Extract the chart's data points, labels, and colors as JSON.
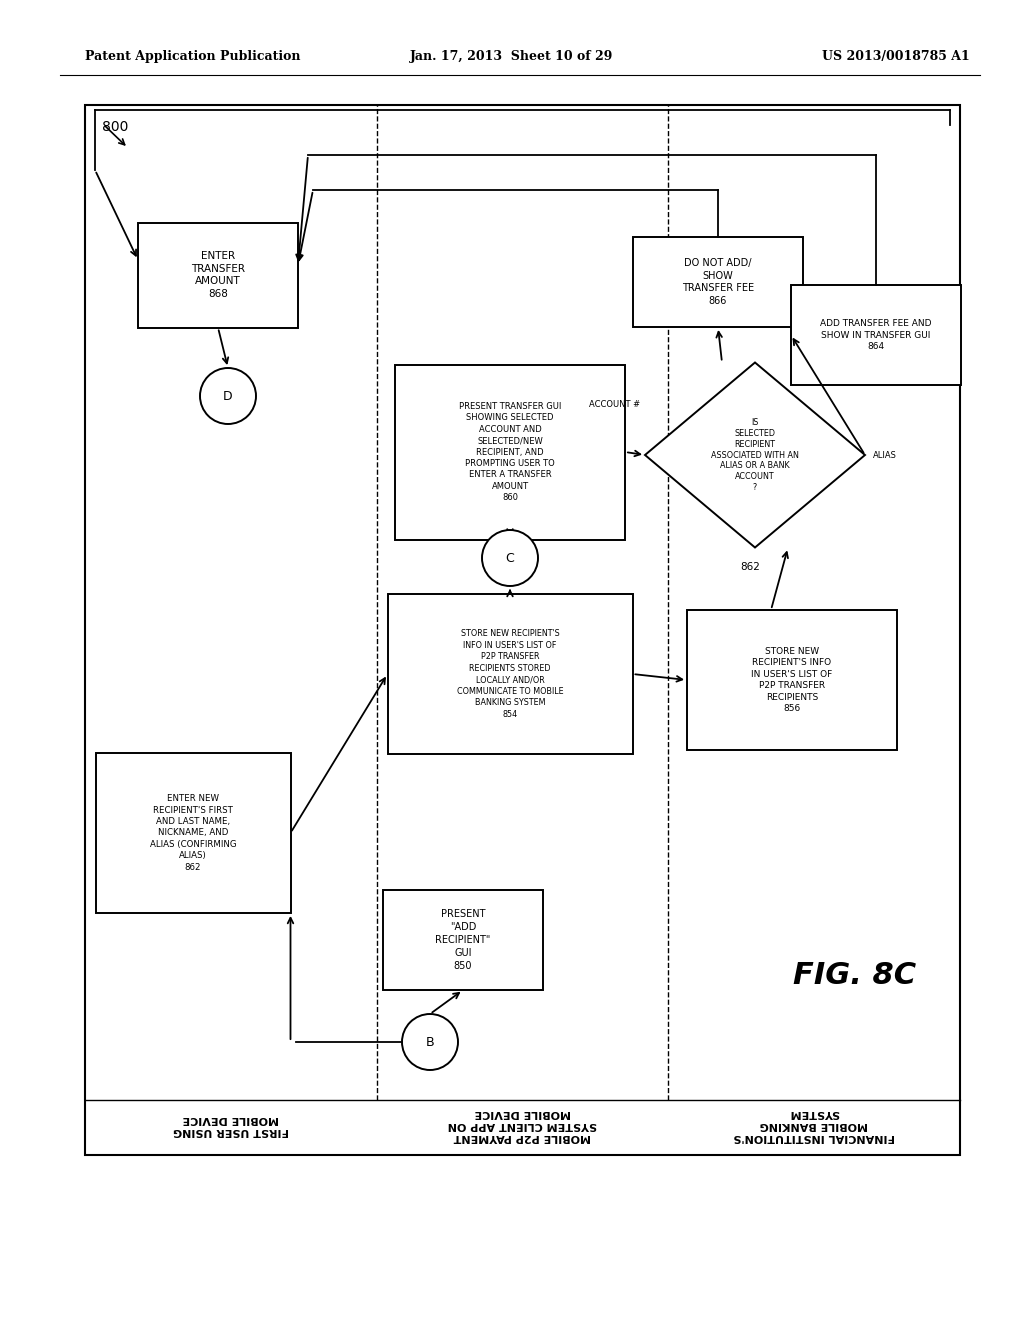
{
  "bg": "#ffffff",
  "header_left": "Patent Application Publication",
  "header_center": "Jan. 17, 2013  Sheet 10 of 29",
  "header_right": "US 2013/0018785 A1",
  "fig_label": "FIG. 8C",
  "diagram_id": "800"
}
